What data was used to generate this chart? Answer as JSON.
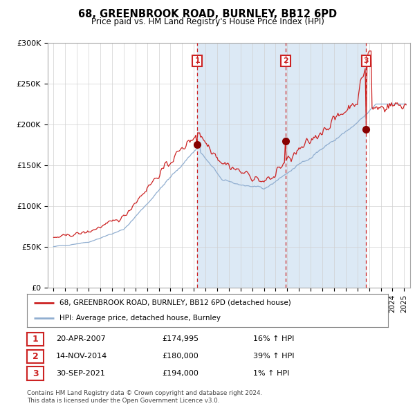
{
  "title": "68, GREENBROOK ROAD, BURNLEY, BB12 6PD",
  "subtitle": "Price paid vs. HM Land Registry's House Price Index (HPI)",
  "bg_color": "#ffffff",
  "shaded_region_color": "#dce9f5",
  "grid_color": "#d0d0d0",
  "hpi_line_color": "#90aed0",
  "price_line_color": "#cc2222",
  "sale_dot_color": "#880000",
  "sale_dashed_color": "#cc2222",
  "purchases": [
    {
      "date_num": 2007.29,
      "price": 174995,
      "label": "1",
      "date_str": "20-APR-2007",
      "pct": "16%",
      "arrow": "↑"
    },
    {
      "date_num": 2014.87,
      "price": 180000,
      "label": "2",
      "date_str": "14-NOV-2014",
      "pct": "39%",
      "arrow": "↑"
    },
    {
      "date_num": 2021.75,
      "price": 194000,
      "label": "3",
      "date_str": "30-SEP-2021",
      "pct": "1%",
      "arrow": "↑"
    }
  ],
  "ylim": [
    0,
    300000
  ],
  "xlim": [
    1994.5,
    2025.5
  ],
  "yticks": [
    0,
    50000,
    100000,
    150000,
    200000,
    250000,
    300000
  ],
  "ytick_labels": [
    "£0",
    "£50K",
    "£100K",
    "£150K",
    "£200K",
    "£250K",
    "£300K"
  ],
  "xticks": [
    1995,
    1996,
    1997,
    1998,
    1999,
    2000,
    2001,
    2002,
    2003,
    2004,
    2005,
    2006,
    2007,
    2008,
    2009,
    2010,
    2011,
    2012,
    2013,
    2014,
    2015,
    2016,
    2017,
    2018,
    2019,
    2020,
    2021,
    2022,
    2023,
    2024,
    2025
  ],
  "legend_line1": "68, GREENBROOK ROAD, BURNLEY, BB12 6PD (detached house)",
  "legend_line2": "HPI: Average price, detached house, Burnley",
  "footnote1": "Contains HM Land Registry data © Crown copyright and database right 2024.",
  "footnote2": "This data is licensed under the Open Government Licence v3.0."
}
